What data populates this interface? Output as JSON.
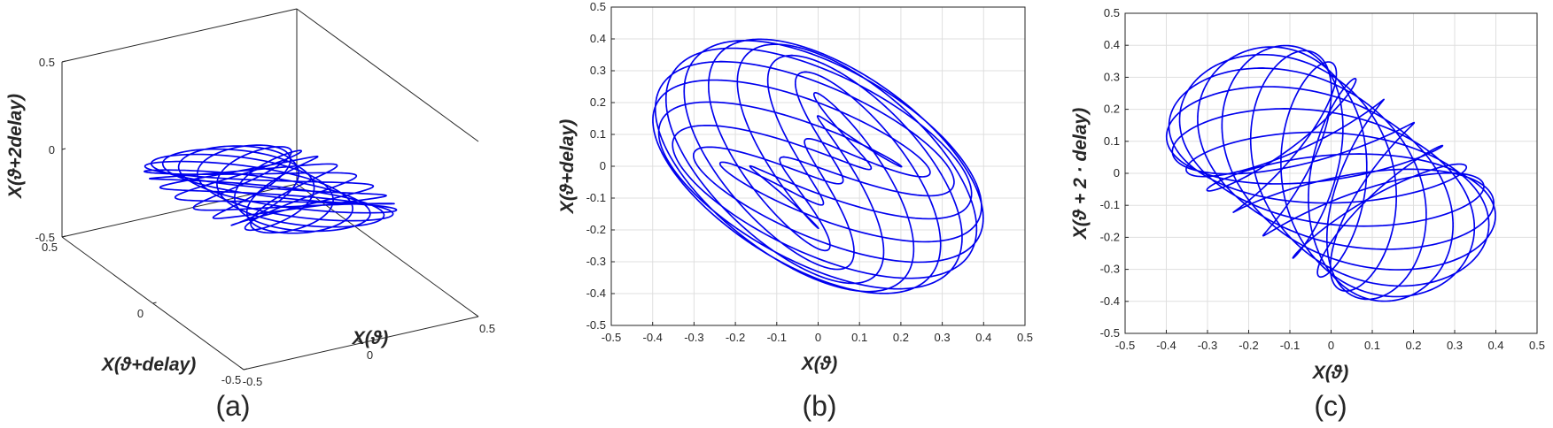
{
  "chart_data": [
    {
      "id": "a",
      "type": "line",
      "projection": "3d",
      "caption": "(a)",
      "xlabel": "X(ϑ)",
      "ylabel": "X(ϑ+delay)",
      "zlabel": "X(ϑ+2delay)",
      "xlim": [
        -0.5,
        0.5
      ],
      "ylim": [
        -0.5,
        0.5
      ],
      "zlim": [
        -0.5,
        0.5
      ],
      "xticks": [
        {
          "v": -0.5,
          "label": "-0.5"
        },
        {
          "v": 0,
          "label": "0"
        },
        {
          "v": 0.5,
          "label": "0.5"
        }
      ],
      "yticks": [
        {
          "v": -0.5,
          "label": "-0.5"
        },
        {
          "v": 0,
          "label": "0"
        },
        {
          "v": 0.5,
          "label": "0.5"
        }
      ],
      "zticks": [
        {
          "v": -0.5,
          "label": "-0.5"
        },
        {
          "v": 0,
          "label": "0"
        },
        {
          "v": 0.5,
          "label": "0.5"
        }
      ],
      "grid": false,
      "color": "#0000ee"
    },
    {
      "id": "b",
      "type": "line",
      "caption": "(b)",
      "xlabel": "X(ϑ)",
      "ylabel": "X(ϑ+delay)",
      "xlim": [
        -0.5,
        0.5
      ],
      "ylim": [
        -0.5,
        0.5
      ],
      "xticks": [
        {
          "v": -0.5,
          "label": "-0.5"
        },
        {
          "v": -0.4,
          "label": "-0.4"
        },
        {
          "v": -0.3,
          "label": "-0.3"
        },
        {
          "v": -0.2,
          "label": "-0.2"
        },
        {
          "v": -0.1,
          "label": "-0.1"
        },
        {
          "v": 0,
          "label": "0"
        },
        {
          "v": 0.1,
          "label": "0.1"
        },
        {
          "v": 0.2,
          "label": "0.2"
        },
        {
          "v": 0.3,
          "label": "0.3"
        },
        {
          "v": 0.4,
          "label": "0.4"
        },
        {
          "v": 0.5,
          "label": "0.5"
        }
      ],
      "yticks": [
        {
          "v": -0.5,
          "label": "-0.5"
        },
        {
          "v": -0.4,
          "label": "-0.4"
        },
        {
          "v": -0.3,
          "label": "-0.3"
        },
        {
          "v": -0.2,
          "label": "-0.2"
        },
        {
          "v": -0.1,
          "label": "-0.1"
        },
        {
          "v": 0,
          "label": "0"
        },
        {
          "v": 0.1,
          "label": "0.1"
        },
        {
          "v": 0.2,
          "label": "0.2"
        },
        {
          "v": 0.3,
          "label": "0.3"
        },
        {
          "v": 0.4,
          "label": "0.4"
        },
        {
          "v": 0.5,
          "label": "0.5"
        }
      ],
      "grid": true,
      "color": "#0000ee"
    },
    {
      "id": "c",
      "type": "line",
      "caption": "(c)",
      "xlabel": "X(ϑ)",
      "ylabel": "X(ϑ + 2 · delay)",
      "xlim": [
        -0.5,
        0.5
      ],
      "ylim": [
        -0.5,
        0.5
      ],
      "xticks": [
        {
          "v": -0.5,
          "label": "-0.5"
        },
        {
          "v": -0.4,
          "label": "-0.4"
        },
        {
          "v": -0.3,
          "label": "-0.3"
        },
        {
          "v": -0.2,
          "label": "-0.2"
        },
        {
          "v": -0.1,
          "label": "-0.1"
        },
        {
          "v": 0,
          "label": "0"
        },
        {
          "v": 0.1,
          "label": "0.1"
        },
        {
          "v": 0.2,
          "label": "0.2"
        },
        {
          "v": 0.3,
          "label": "0.3"
        },
        {
          "v": 0.4,
          "label": "0.4"
        },
        {
          "v": 0.5,
          "label": "0.5"
        }
      ],
      "yticks": [
        {
          "v": -0.5,
          "label": "-0.5"
        },
        {
          "v": -0.4,
          "label": "-0.4"
        },
        {
          "v": -0.3,
          "label": "-0.3"
        },
        {
          "v": -0.2,
          "label": "-0.2"
        },
        {
          "v": -0.1,
          "label": "-0.1"
        },
        {
          "v": 0,
          "label": "0"
        },
        {
          "v": 0.1,
          "label": "0.1"
        },
        {
          "v": 0.2,
          "label": "0.2"
        },
        {
          "v": 0.3,
          "label": "0.3"
        },
        {
          "v": 0.4,
          "label": "0.4"
        },
        {
          "v": 0.5,
          "label": "0.5"
        }
      ],
      "grid": true,
      "color": "#0000ee"
    }
  ]
}
